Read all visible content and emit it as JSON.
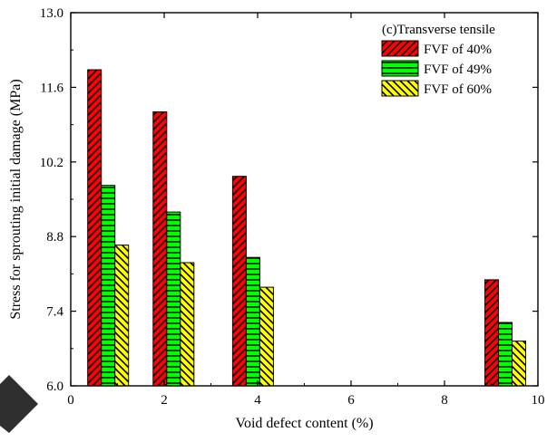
{
  "chart_data": {
    "type": "bar",
    "annotation": "(c)Transverse tensile",
    "xlabel": "Void defect content (%)",
    "ylabel": "Stress for sprouting initial damage (MPa)",
    "xlim": [
      0,
      10
    ],
    "ylim": [
      6.0,
      13.0
    ],
    "x_ticks": [
      "0",
      "2",
      "4",
      "6",
      "8",
      "10"
    ],
    "y_ticks": [
      "6.0",
      "7.4",
      "8.8",
      "10.2",
      "11.6",
      "13.0"
    ],
    "grid": false,
    "legend_position": "top-right",
    "x": [
      0.8,
      2.2,
      3.9,
      9.3
    ],
    "series": [
      {
        "name": "FVF of 40%",
        "values": [
          11.93,
          11.14,
          9.93,
          7.99
        ],
        "color": "#ff0000",
        "hatch": "diagonal"
      },
      {
        "name": "FVF of 49%",
        "values": [
          9.76,
          9.26,
          8.41,
          7.19
        ],
        "color": "#00ff00",
        "hatch": "horizontal"
      },
      {
        "name": "FVF of 60%",
        "values": [
          8.64,
          8.31,
          7.85,
          6.84
        ],
        "color": "#ffff00",
        "hatch": "diagonal-reverse"
      }
    ]
  }
}
